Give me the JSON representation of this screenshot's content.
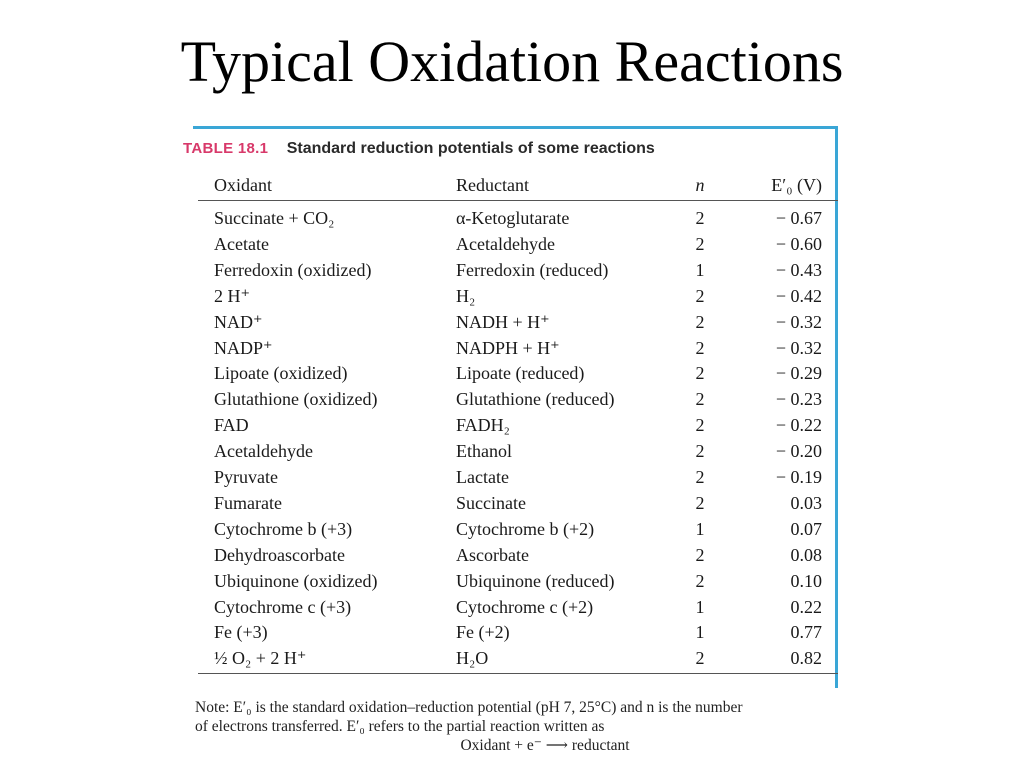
{
  "title": "Typical Oxidation Reactions",
  "table": {
    "number": "TABLE 18.1",
    "caption": "Standard reduction potentials of some reactions",
    "headers": {
      "oxidant": "Oxidant",
      "reductant": "Reductant",
      "n": "n",
      "potential": "E′₀ (V)"
    },
    "rows": [
      {
        "oxidant": "Succinate + CO₂",
        "reductant": "α-Ketoglutarate",
        "n": "2",
        "e": "− 0.67"
      },
      {
        "oxidant": "Acetate",
        "reductant": "Acetaldehyde",
        "n": "2",
        "e": "− 0.60"
      },
      {
        "oxidant": "Ferredoxin (oxidized)",
        "reductant": "Ferredoxin (reduced)",
        "n": "1",
        "e": "− 0.43"
      },
      {
        "oxidant": "2 H⁺",
        "reductant": "H₂",
        "n": "2",
        "e": "− 0.42"
      },
      {
        "oxidant": "NAD⁺",
        "reductant": "NADH + H⁺",
        "n": "2",
        "e": "− 0.32"
      },
      {
        "oxidant": "NADP⁺",
        "reductant": "NADPH + H⁺",
        "n": "2",
        "e": "− 0.32"
      },
      {
        "oxidant": "Lipoate (oxidized)",
        "reductant": "Lipoate (reduced)",
        "n": "2",
        "e": "− 0.29"
      },
      {
        "oxidant": "Glutathione (oxidized)",
        "reductant": "Glutathione (reduced)",
        "n": "2",
        "e": "− 0.23"
      },
      {
        "oxidant": "FAD",
        "reductant": "FADH₂",
        "n": "2",
        "e": "− 0.22"
      },
      {
        "oxidant": "Acetaldehyde",
        "reductant": "Ethanol",
        "n": "2",
        "e": "− 0.20"
      },
      {
        "oxidant": "Pyruvate",
        "reductant": "Lactate",
        "n": "2",
        "e": "− 0.19"
      },
      {
        "oxidant": "Fumarate",
        "reductant": "Succinate",
        "n": "2",
        "e": "0.03"
      },
      {
        "oxidant": "Cytochrome b (+3)",
        "reductant": "Cytochrome b (+2)",
        "n": "1",
        "e": "0.07"
      },
      {
        "oxidant": "Dehydroascorbate",
        "reductant": "Ascorbate",
        "n": "2",
        "e": "0.08"
      },
      {
        "oxidant": "Ubiquinone (oxidized)",
        "reductant": "Ubiquinone (reduced)",
        "n": "2",
        "e": "0.10"
      },
      {
        "oxidant": "Cytochrome c (+3)",
        "reductant": "Cytochrome c (+2)",
        "n": "1",
        "e": "0.22"
      },
      {
        "oxidant": "Fe (+3)",
        "reductant": "Fe (+2)",
        "n": "1",
        "e": "0.77"
      },
      {
        "oxidant": "½ O₂ + 2 H⁺",
        "reductant": "H₂O",
        "n": "2",
        "e": "0.82"
      }
    ],
    "note": [
      "Note: E′₀ is the standard oxidation–reduction potential (pH 7, 25°C) and n is the number",
      "of electrons transferred. E′₀ refers to the partial reaction written as",
      "Oxidant + e⁻ ⟶ reductant"
    ]
  },
  "colors": {
    "frame": "#3aa6d6",
    "caption_accent": "#d8396a"
  }
}
